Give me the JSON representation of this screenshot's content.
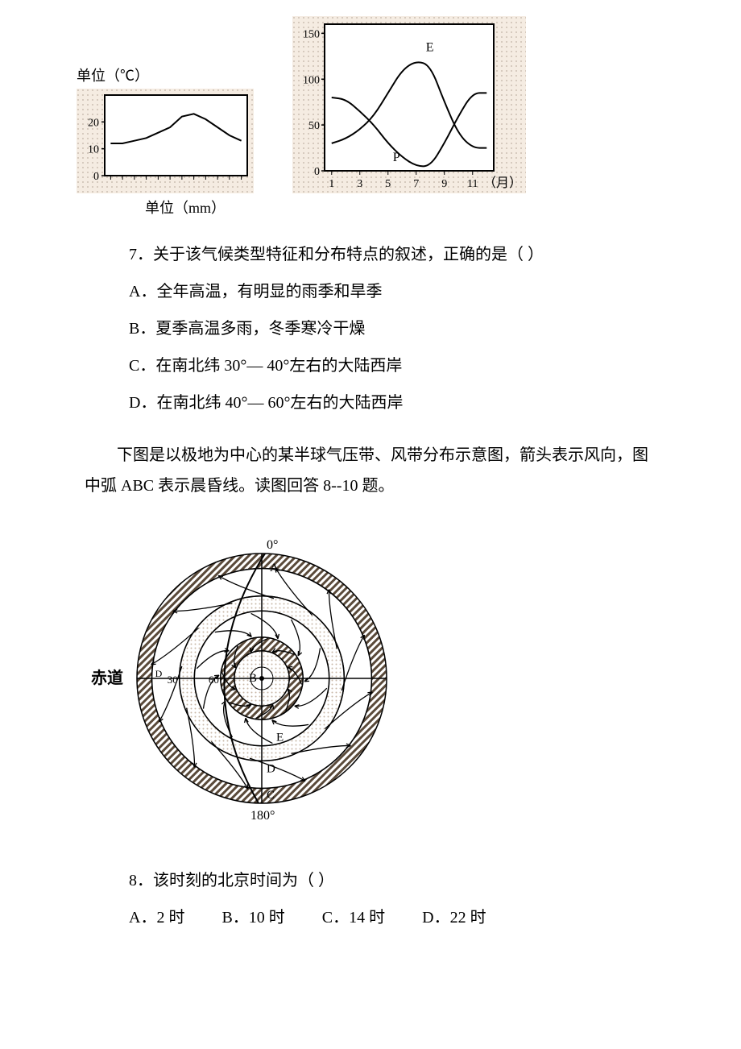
{
  "left_chart": {
    "type": "line",
    "title": "单位（℃）",
    "ylim": [
      0,
      30
    ],
    "yticks": [
      0,
      10,
      20
    ],
    "xlim": [
      1,
      12
    ],
    "xticks_count": 12,
    "series": {
      "values": [
        12,
        12,
        13,
        14,
        16,
        18,
        22,
        23,
        21,
        18,
        15,
        13
      ],
      "line_color": "#000000",
      "line_width": 2
    },
    "background_color": "#f0e8e0",
    "dot_pattern": true,
    "border_color": "#000000",
    "tick_fontsize": 14,
    "label_fontsize": 18
  },
  "right_chart": {
    "type": "line",
    "ylim": [
      0,
      160
    ],
    "yticks": [
      0,
      50,
      100,
      150
    ],
    "xlim": [
      1,
      12
    ],
    "xticks": [
      1,
      3,
      5,
      7,
      9,
      11
    ],
    "x_unit": "（月）",
    "series_E": {
      "label": "E",
      "values": [
        30,
        35,
        45,
        60,
        85,
        110,
        120,
        115,
        75,
        40,
        25,
        25
      ],
      "line_color": "#000000",
      "line_width": 2
    },
    "series_P": {
      "label": "P",
      "values": [
        80,
        78,
        65,
        50,
        30,
        15,
        5,
        5,
        30,
        60,
        85,
        85
      ],
      "line_color": "#000000",
      "line_width": 2
    },
    "background_color": "#f0e8e0",
    "dot_pattern": true,
    "border_color": "#000000",
    "tick_fontsize": 14,
    "label_fontsize": 18
  },
  "mm_label": "单位（mm）",
  "q7": {
    "stem": "7．关于该气候类型特征和分布特点的叙述，正确的是（ ）",
    "A": "A．全年高温，有明显的雨季和旱季",
    "B": "B．夏季高温多雨，冬季寒冷干燥",
    "C": "C．在南北纬 30°— 40°左右的大陆西岸",
    "D": "D．在南北纬 40°— 60°左右的大陆西岸"
  },
  "intro": "下图是以极地为中心的某半球气压带、风带分布示意图，箭头表示风向，图中弧 ABC 表示晨昏线。读图回答 8--10 题。",
  "polar_diagram": {
    "type": "diagram",
    "top_label": "0°",
    "bottom_label": "180°",
    "equator_label": "赤道",
    "lat_labels": [
      "30",
      "60"
    ],
    "arc_points": [
      "A",
      "B",
      "C",
      "D",
      "E"
    ],
    "ring_colors": {
      "outer_hatch": "#5a4a3a",
      "dotted_band": "#c8b8a8",
      "background": "#ffffff",
      "line": "#000000"
    },
    "line_width": 1.5
  },
  "q8": {
    "stem": "8．该时刻的北京时间为（ ）",
    "A": "A．2 时",
    "B": "B．10 时",
    "C": "C．14 时",
    "D": "D．22 时"
  }
}
